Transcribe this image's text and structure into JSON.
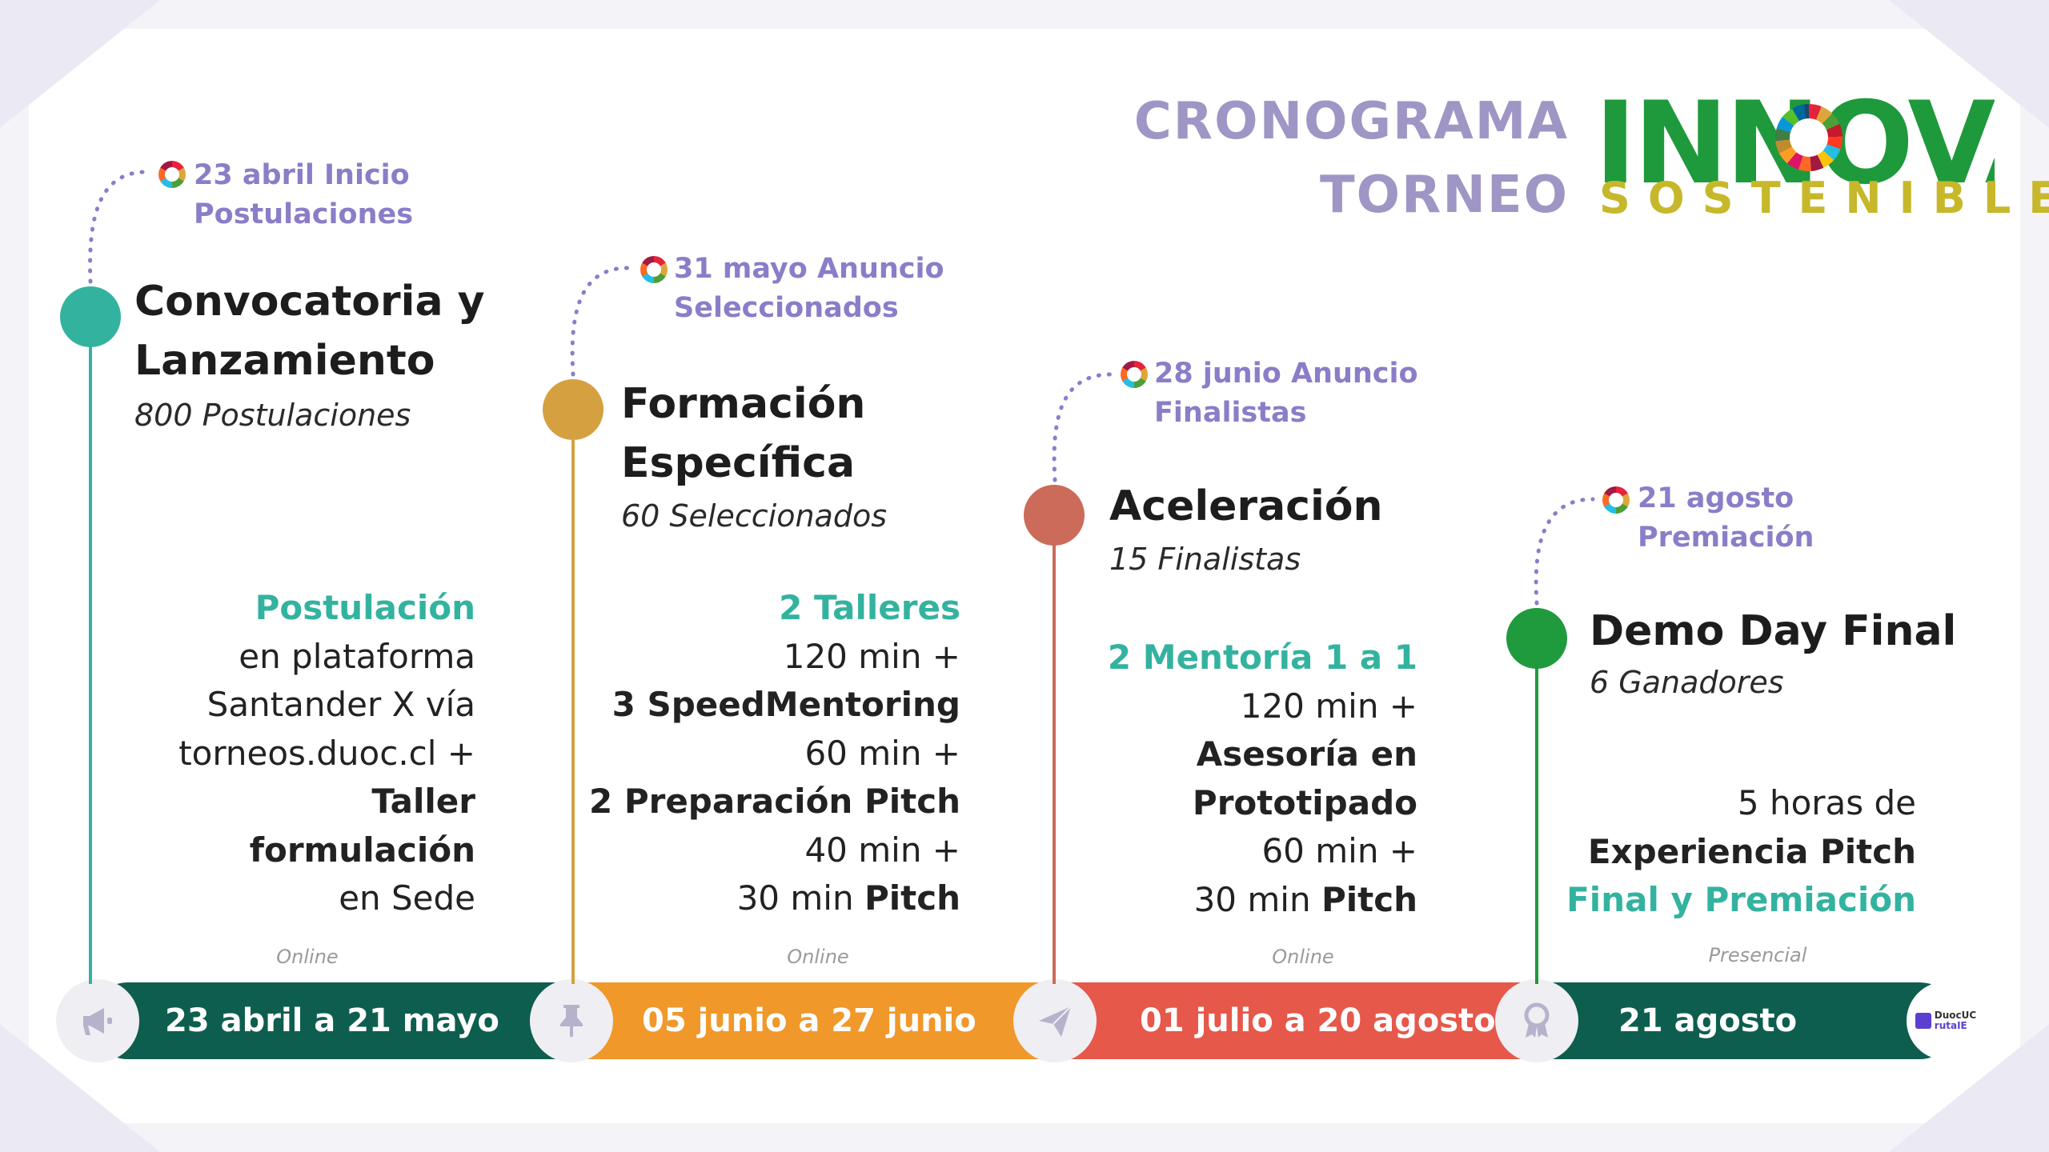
{
  "header": {
    "title_line1": "CRONOGRAMA",
    "title_line2": "TORNEO",
    "logo_top": "INNOVA",
    "logo_bottom": "SOSTENIBLE"
  },
  "colors": {
    "teal": "#33b39f",
    "orange": "#f0982a",
    "mustard": "#d5a040",
    "red": "#e5584a",
    "clay": "#cc6b5a",
    "green": "#1f9a3c",
    "dark_green": "#0e5e4f",
    "purple": "#8b7dc8"
  },
  "milestones": [
    {
      "annotation_l1": "23 abril Inicio",
      "annotation_l2": "Postulaciones",
      "title_l1": "Convocatoria y",
      "title_l2": "Lanzamiento",
      "subtitle": "800 Postulaciones",
      "desc": [
        "Postulación",
        "en plataforma",
        "Santander X vía",
        "torneos.duoc.cl +",
        "Taller formulación",
        "en Sede"
      ],
      "mode": "Online",
      "dates": "23 abril a 21 mayo",
      "icon": "megaphone-icon"
    },
    {
      "annotation_l1": "31 mayo Anuncio",
      "annotation_l2": "Seleccionados",
      "title_l1": "Formación",
      "title_l2": "Específica",
      "subtitle": "60 Seleccionados",
      "desc": [
        "2 Talleres",
        "120 min +",
        "3 SpeedMentoring",
        "60 min +",
        "2 Preparación Pitch",
        "40 min +",
        "30 min ",
        "Pitch"
      ],
      "mode": "Online",
      "dates": "05 junio a 27 junio",
      "icon": "pin-icon"
    },
    {
      "annotation_l1": "28 junio Anuncio",
      "annotation_l2": "Finalistas",
      "title_l1": "Aceleración",
      "subtitle": "15 Finalistas",
      "desc": [
        "2 Mentoría 1 a 1",
        "120 min +",
        "Asesoría en",
        "Prototipado",
        "60 min +",
        "30 min ",
        "Pitch"
      ],
      "mode": "Online",
      "dates": "01 julio a 20 agosto",
      "icon": "paper-plane-icon"
    },
    {
      "annotation_l1": "21 agosto",
      "annotation_l2": "Premiación",
      "title_l1": "Demo Day Final",
      "subtitle": "6 Ganadores",
      "desc": [
        "5 horas de",
        "Experiencia Pitch",
        "Final y Premiación"
      ],
      "mode": "Presencial",
      "dates": "21 agosto",
      "icon": "award-icon"
    }
  ],
  "footer_logo": {
    "line1": "DuocUC",
    "line2": "rutaIE"
  }
}
